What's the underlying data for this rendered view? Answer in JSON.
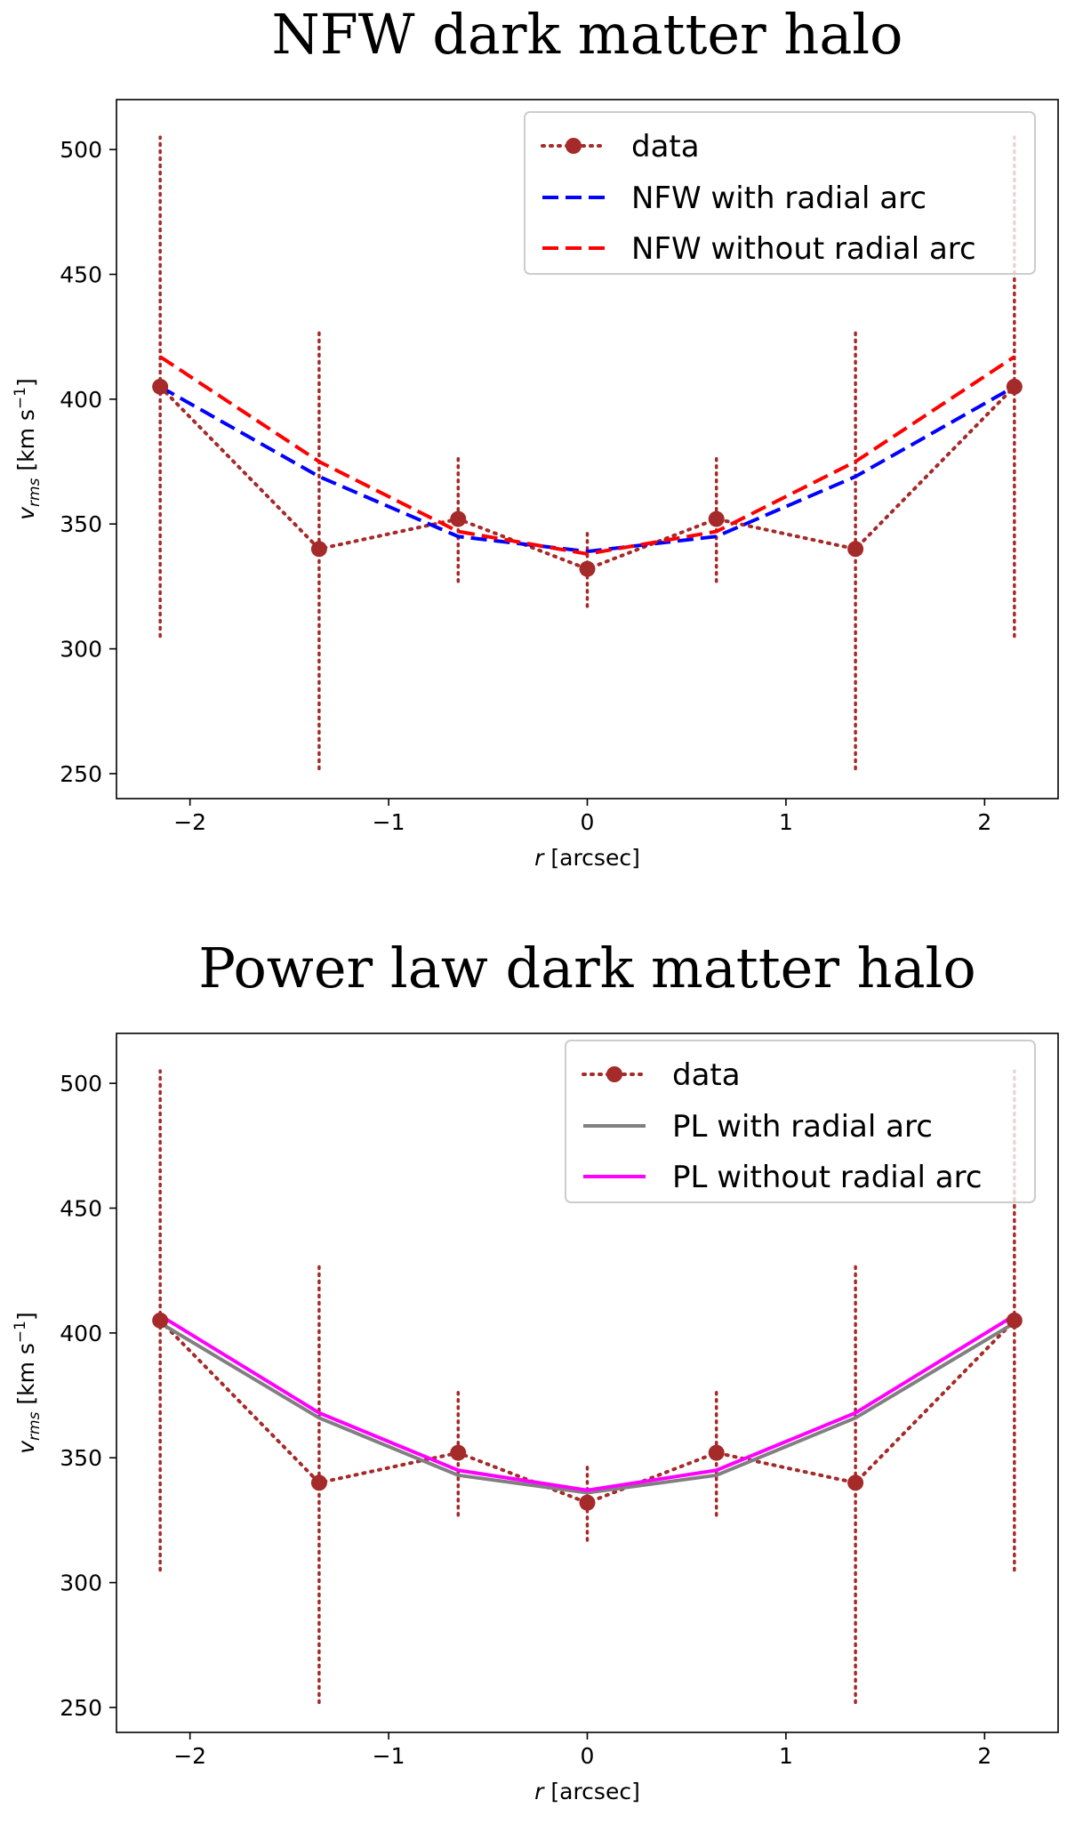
{
  "chart_data": [
    {
      "type": "line",
      "title": "NFW dark matter halo",
      "xlabel_var": "r",
      "xlabel_unit": " [arcsec]",
      "ylabel_var": "v",
      "ylabel_sub": "rms",
      "ylabel_unit_a": " [km s",
      "ylabel_sup": "−1",
      "ylabel_unit_b": "]",
      "xlim": [
        -2.37,
        2.37
      ],
      "ylim": [
        240,
        520
      ],
      "x_ticks": [
        -2,
        -1,
        0,
        1,
        2
      ],
      "x_tick_labels": [
        "−2",
        "−1",
        "0",
        "1",
        "2"
      ],
      "y_ticks": [
        250,
        300,
        350,
        400,
        450,
        500
      ],
      "y_tick_labels": [
        "250",
        "300",
        "350",
        "400",
        "450",
        "500"
      ],
      "data": {
        "name": "data",
        "color": "#a52a2a",
        "x": [
          -2.15,
          -1.35,
          -0.65,
          0.0,
          0.65,
          1.35,
          2.15
        ],
        "y": [
          405,
          340,
          352,
          332,
          352,
          340,
          405
        ],
        "err": [
          100,
          88,
          25,
          15,
          25,
          88,
          100
        ]
      },
      "series": [
        {
          "name": "NFW with radial arc",
          "color": "#0000ff",
          "style": "dashed",
          "x": [
            -2.15,
            -1.35,
            -0.65,
            0.0,
            0.65,
            1.35,
            2.15
          ],
          "y": [
            405,
            369,
            345,
            339,
            345,
            369,
            405
          ]
        },
        {
          "name": "NFW without radial arc",
          "color": "#ff0000",
          "style": "dashed",
          "x": [
            -2.15,
            -1.35,
            -0.65,
            0.0,
            0.65,
            1.35,
            2.15
          ],
          "y": [
            417,
            375,
            347,
            338,
            347,
            375,
            417
          ]
        }
      ],
      "legend_position": "top-right",
      "grid": false
    },
    {
      "type": "line",
      "title": "Power law dark matter halo",
      "xlabel_var": "r",
      "xlabel_unit": " [arcsec]",
      "ylabel_var": "v",
      "ylabel_sub": "rms",
      "ylabel_unit_a": " [km s",
      "ylabel_sup": "−1",
      "ylabel_unit_b": "]",
      "xlim": [
        -2.37,
        2.37
      ],
      "ylim": [
        240,
        520
      ],
      "x_ticks": [
        -2,
        -1,
        0,
        1,
        2
      ],
      "x_tick_labels": [
        "−2",
        "−1",
        "0",
        "1",
        "2"
      ],
      "y_ticks": [
        250,
        300,
        350,
        400,
        450,
        500
      ],
      "y_tick_labels": [
        "250",
        "300",
        "350",
        "400",
        "450",
        "500"
      ],
      "data": {
        "name": "data",
        "color": "#a52a2a",
        "x": [
          -2.15,
          -1.35,
          -0.65,
          0.0,
          0.65,
          1.35,
          2.15
        ],
        "y": [
          405,
          340,
          352,
          332,
          352,
          340,
          405
        ],
        "err": [
          100,
          88,
          25,
          15,
          25,
          88,
          100
        ]
      },
      "series": [
        {
          "name": "PL with radial arc",
          "color": "#808080",
          "style": "solid",
          "x": [
            -2.15,
            -1.35,
            -0.65,
            0.0,
            0.65,
            1.35,
            2.15
          ],
          "y": [
            404,
            366,
            343,
            336,
            343,
            366,
            404
          ]
        },
        {
          "name": "PL without radial arc",
          "color": "#ff00ff",
          "style": "solid",
          "x": [
            -2.15,
            -1.35,
            -0.65,
            0.0,
            0.65,
            1.35,
            2.15
          ],
          "y": [
            407,
            368,
            345,
            337,
            345,
            368,
            407
          ]
        }
      ],
      "legend_position": "top-right",
      "grid": false
    }
  ]
}
